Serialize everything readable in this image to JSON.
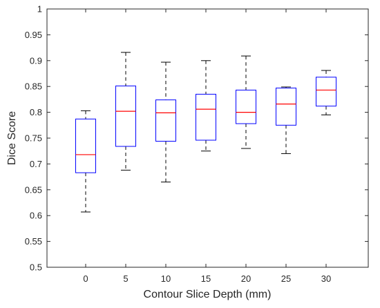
{
  "chart_data": {
    "type": "box",
    "title": "",
    "xlabel": "Contour Slice Depth (mm)",
    "ylabel": "Dice Score",
    "ylim": [
      0.5,
      1
    ],
    "yticks": [
      "0.5",
      "0.55",
      "0.6",
      "0.65",
      "0.7",
      "0.75",
      "0.8",
      "0.85",
      "0.9",
      "0.95",
      "1"
    ],
    "categories": [
      "0",
      "5",
      "10",
      "15",
      "20",
      "25",
      "30"
    ],
    "boxes": [
      {
        "category": "0",
        "whisker_low": 0.607,
        "q1": 0.683,
        "median": 0.718,
        "q3": 0.787,
        "whisker_high": 0.803
      },
      {
        "category": "5",
        "whisker_low": 0.688,
        "q1": 0.734,
        "median": 0.802,
        "q3": 0.851,
        "whisker_high": 0.916
      },
      {
        "category": "10",
        "whisker_low": 0.665,
        "q1": 0.744,
        "median": 0.799,
        "q3": 0.824,
        "whisker_high": 0.897
      },
      {
        "category": "15",
        "whisker_low": 0.725,
        "q1": 0.746,
        "median": 0.806,
        "q3": 0.835,
        "whisker_high": 0.9
      },
      {
        "category": "20",
        "whisker_low": 0.73,
        "q1": 0.778,
        "median": 0.8,
        "q3": 0.843,
        "whisker_high": 0.909
      },
      {
        "category": "25",
        "whisker_low": 0.72,
        "q1": 0.775,
        "median": 0.816,
        "q3": 0.847,
        "whisker_high": 0.849
      },
      {
        "category": "30",
        "whisker_low": 0.795,
        "q1": 0.812,
        "median": 0.843,
        "q3": 0.868,
        "whisker_high": 0.881
      }
    ],
    "colors": {
      "box": "#0000ff",
      "median": "#ff0000",
      "whisker": "#000000",
      "axes": "#262626"
    },
    "grid": false,
    "legend": "none"
  }
}
